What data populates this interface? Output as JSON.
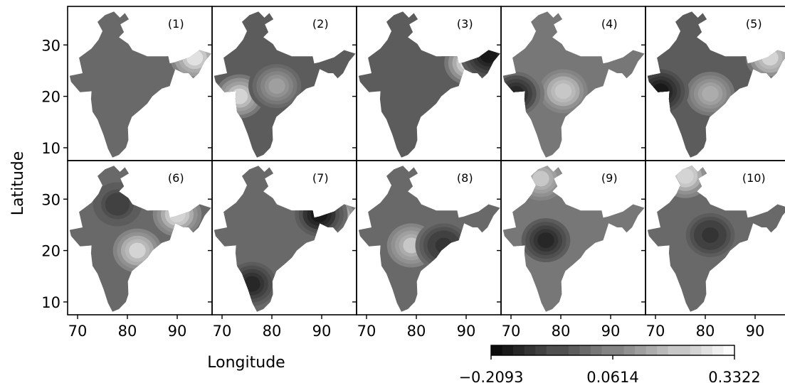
{
  "chart_data": {
    "type": "heatmap",
    "layout": {
      "rows": 2,
      "cols": 5
    },
    "panels": [
      {
        "label": "(1)",
        "hotspots": [
          {
            "lon": 93.5,
            "lat": 27.5,
            "value": 0.33
          }
        ],
        "base": 0.0
      },
      {
        "label": "(2)",
        "hotspots": [
          {
            "lon": 73.5,
            "lat": 20.0,
            "value": 0.28
          },
          {
            "lon": 81.0,
            "lat": 22.0,
            "value": 0.16
          }
        ],
        "base": -0.02
      },
      {
        "label": "(3)",
        "hotspots": [
          {
            "lon": 90.5,
            "lat": 26.5,
            "value": 0.32
          },
          {
            "lon": 94.5,
            "lat": 28.0,
            "value": -0.2
          }
        ],
        "base": -0.03
      },
      {
        "label": "(4)",
        "hotspots": [
          {
            "lon": 80.5,
            "lat": 21.0,
            "value": 0.26
          },
          {
            "lon": 71.0,
            "lat": 20.5,
            "value": -0.18
          }
        ],
        "base": 0.02
      },
      {
        "label": "(5)",
        "hotspots": [
          {
            "lon": 93.0,
            "lat": 27.5,
            "value": 0.3
          },
          {
            "lon": 81.0,
            "lat": 20.5,
            "value": 0.2
          },
          {
            "lon": 71.0,
            "lat": 21.0,
            "value": -0.2
          }
        ],
        "base": -0.02
      },
      {
        "label": "(6)",
        "hotspots": [
          {
            "lon": 82.0,
            "lat": 20.0,
            "value": 0.28
          },
          {
            "lon": 90.0,
            "lat": 27.0,
            "value": 0.3
          },
          {
            "lon": 78.0,
            "lat": 29.0,
            "value": -0.12
          }
        ],
        "base": 0.0
      },
      {
        "label": "(7)",
        "hotspots": [
          {
            "lon": 92.5,
            "lat": 26.5,
            "value": 0.31
          },
          {
            "lon": 89.5,
            "lat": 27.0,
            "value": -0.2
          },
          {
            "lon": 76.0,
            "lat": 13.5,
            "value": -0.18
          }
        ],
        "base": -0.01
      },
      {
        "label": "(8)",
        "hotspots": [
          {
            "lon": 79.0,
            "lat": 21.0,
            "value": 0.24
          },
          {
            "lon": 85.5,
            "lat": 21.0,
            "value": -0.16
          }
        ],
        "base": 0.01
      },
      {
        "label": "(9)",
        "hotspots": [
          {
            "lon": 76.0,
            "lat": 34.0,
            "value": 0.24
          },
          {
            "lon": 77.0,
            "lat": 22.0,
            "value": -0.19
          }
        ],
        "base": 0.02
      },
      {
        "label": "(10)",
        "hotspots": [
          {
            "lon": 76.0,
            "lat": 34.5,
            "value": 0.3
          },
          {
            "lon": 81.0,
            "lat": 23.0,
            "value": -0.15
          }
        ],
        "base": 0.0
      }
    ],
    "xlabel": "Longitude",
    "ylabel": "Latitude",
    "xticks": [
      70,
      80,
      90
    ],
    "yticks": [
      10,
      20,
      30
    ],
    "xlim": [
      68,
      97
    ],
    "ylim": [
      7.5,
      37.5
    ],
    "colorbar": {
      "min": -0.2093,
      "max": 0.3322,
      "ticks": [
        "−0.2093",
        "0.0614",
        "0.3322"
      ],
      "colormap": "gray"
    },
    "grid": false
  }
}
